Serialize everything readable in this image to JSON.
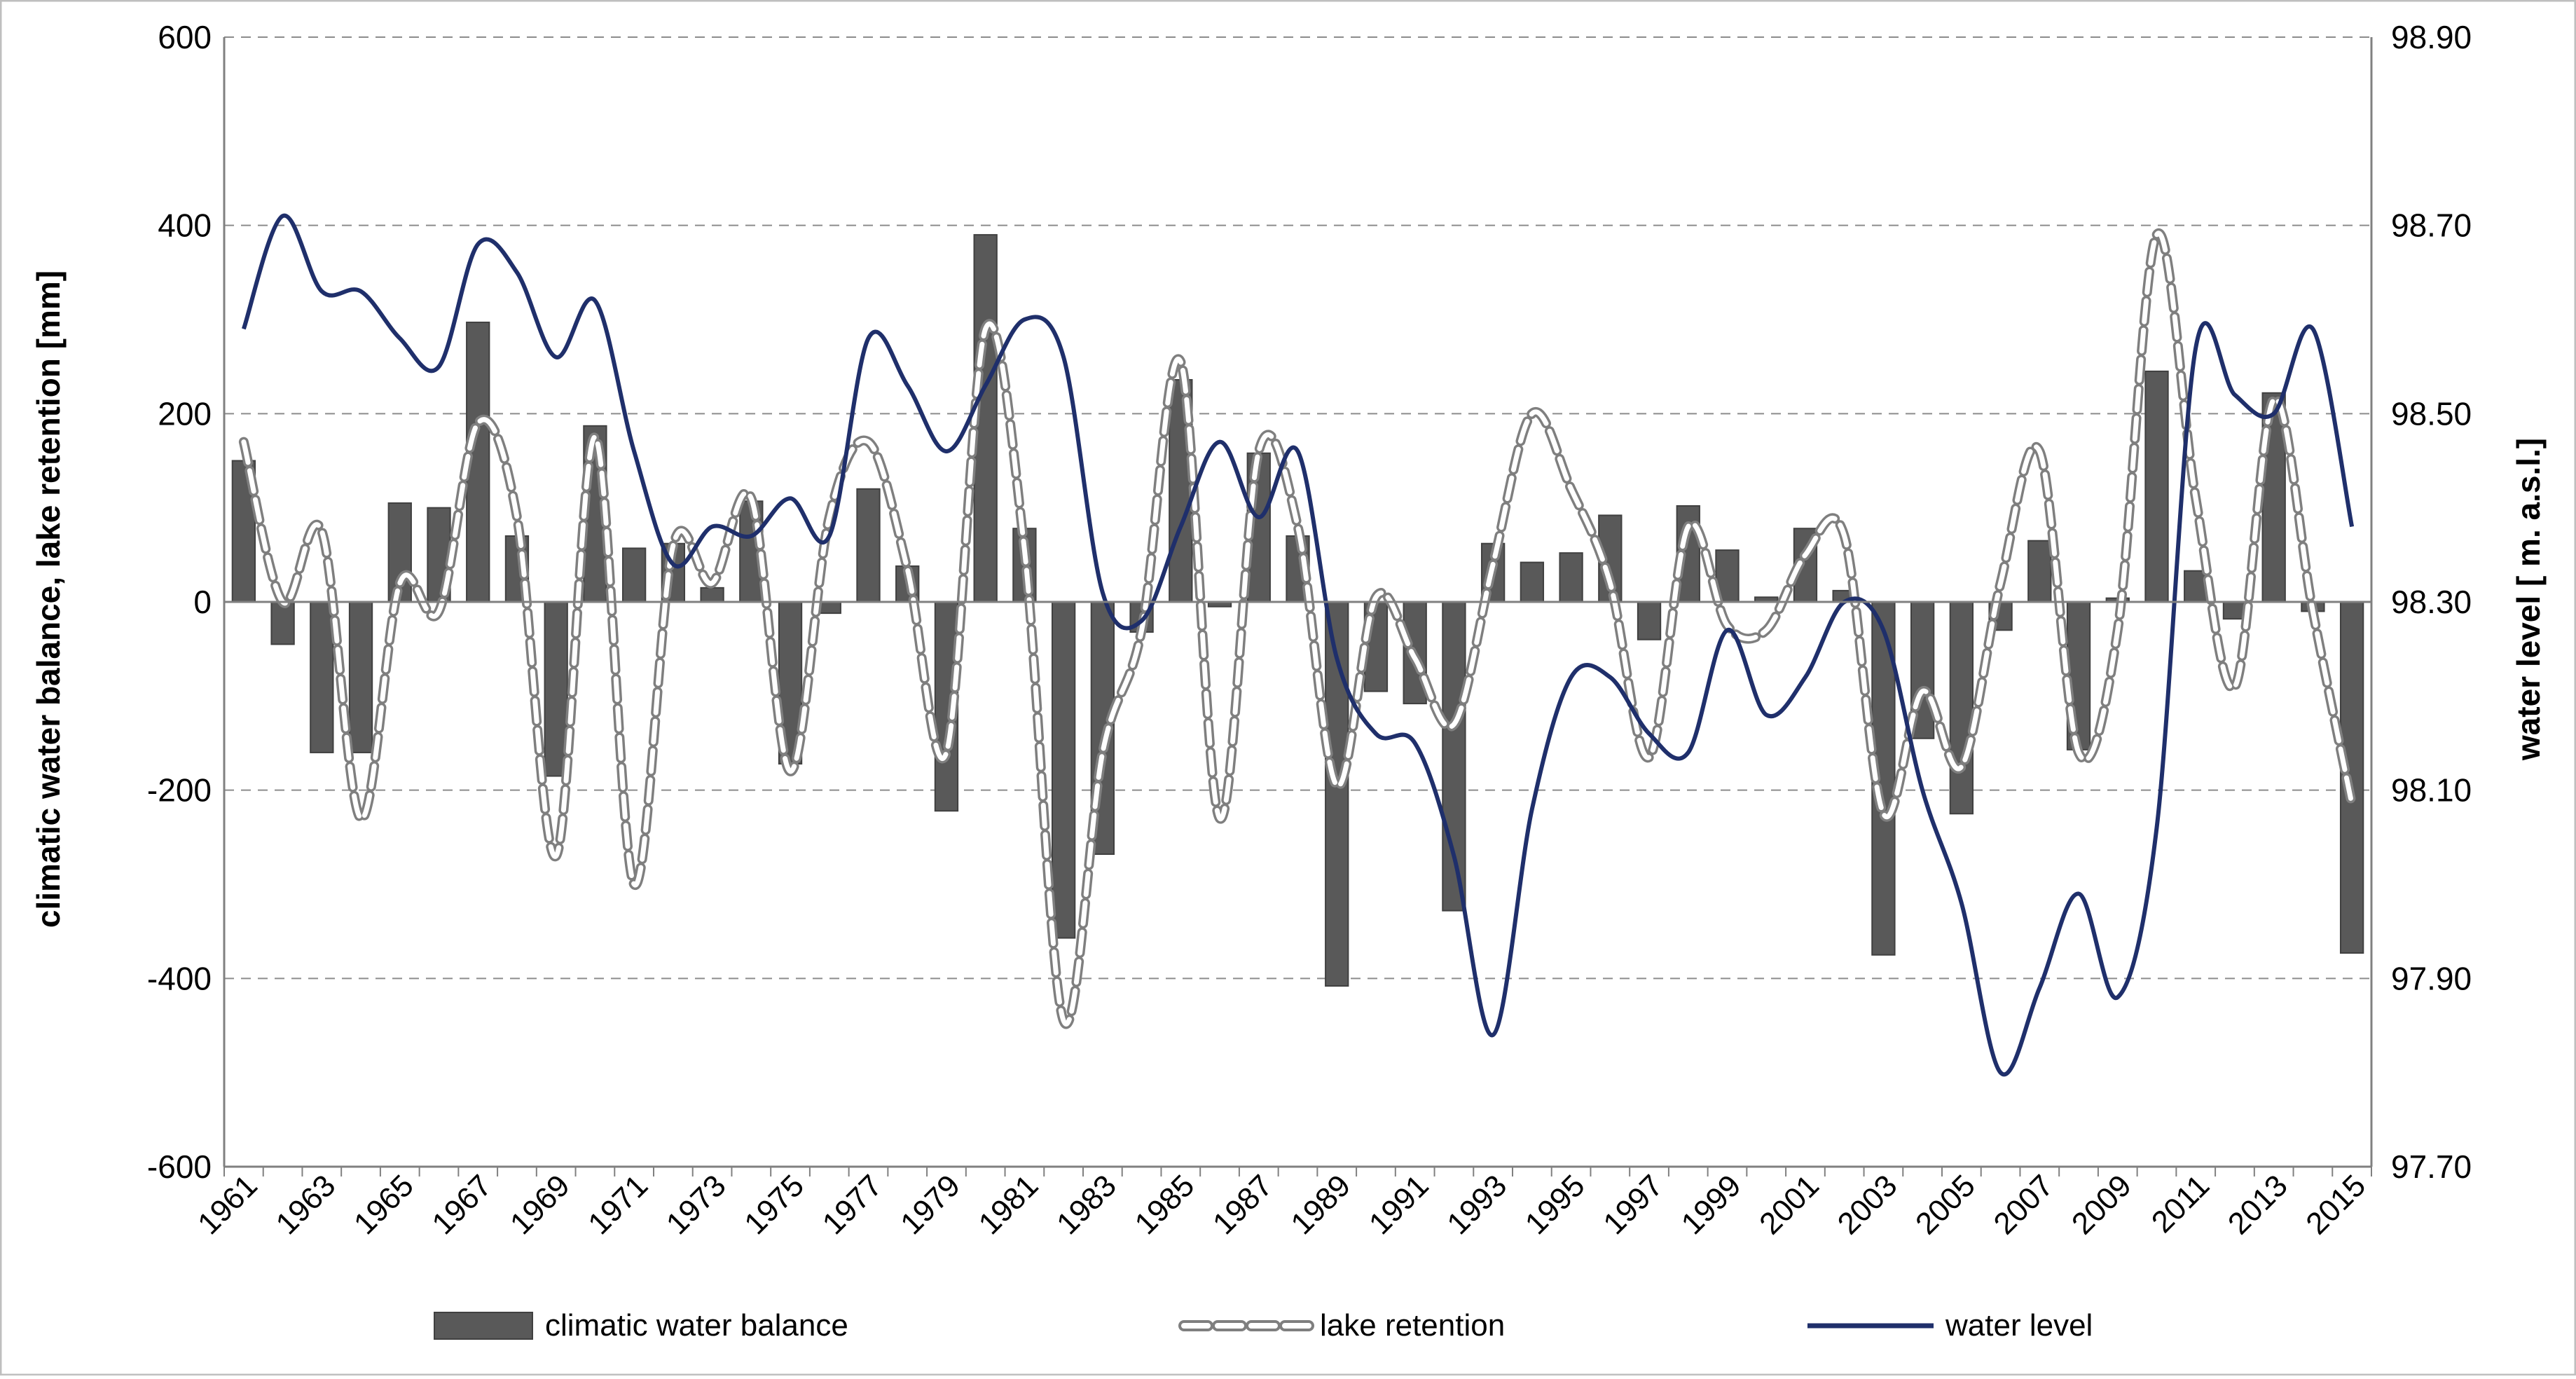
{
  "chart_data": {
    "type": "bar+line",
    "title": "",
    "xlabel": "",
    "ylabel_left": "climatic water balance, lake retention [mm]",
    "ylabel_right": "water level [ m. a.s.l.]",
    "ylim_left": [
      -600,
      600
    ],
    "ylim_right": [
      97.7,
      98.9
    ],
    "yticks_left": [
      "600",
      "400",
      "200",
      "0",
      "-200",
      "-400",
      "-600"
    ],
    "yticks_right": [
      "98.90",
      "98.70",
      "98.50",
      "98.30",
      "98.10",
      "97.90",
      "97.70"
    ],
    "grid": "horizontal dashed",
    "legend_position": "bottom",
    "x": [
      1961,
      1962,
      1963,
      1964,
      1965,
      1966,
      1967,
      1968,
      1969,
      1970,
      1971,
      1972,
      1973,
      1974,
      1975,
      1976,
      1977,
      1978,
      1979,
      1980,
      1981,
      1982,
      1983,
      1984,
      1985,
      1986,
      1987,
      1988,
      1989,
      1990,
      1991,
      1992,
      1993,
      1994,
      1995,
      1996,
      1997,
      1998,
      1999,
      2000,
      2001,
      2002,
      2003,
      2004,
      2005,
      2006,
      2007,
      2008,
      2009,
      2010,
      2011,
      2012,
      2013,
      2014,
      2015
    ],
    "xtick_labels": [
      "1961",
      "1963",
      "1965",
      "1967",
      "1969",
      "1971",
      "1973",
      "1975",
      "1977",
      "1979",
      "1981",
      "1983",
      "1985",
      "1987",
      "1989",
      "1991",
      "1993",
      "1995",
      "1997",
      "1999",
      "2001",
      "2003",
      "2005",
      "2007",
      "2009",
      "2011",
      "2013",
      "2015"
    ],
    "series": [
      {
        "name": "climatic water balance",
        "kind": "bar",
        "axis": "left",
        "color": "#595959",
        "values": [
          150,
          -45,
          -160,
          -160,
          105,
          100,
          297,
          70,
          -185,
          187,
          57,
          62,
          15,
          107,
          -172,
          -12,
          120,
          38,
          -222,
          390,
          78,
          -357,
          -268,
          -32,
          236,
          -5,
          158,
          70,
          -408,
          -95,
          -108,
          -328,
          62,
          42,
          52,
          92,
          -40,
          102,
          55,
          5,
          78,
          12,
          -375,
          -145,
          -225,
          -30,
          65,
          -157,
          4,
          245,
          33,
          -18,
          222,
          -10,
          -373
        ]
      },
      {
        "name": "lake retention",
        "kind": "line-dashed",
        "axis": "left",
        "color": "#7f7f7f",
        "values": [
          170,
          0,
          75,
          -230,
          20,
          -10,
          190,
          90,
          -270,
          175,
          -300,
          60,
          20,
          110,
          -180,
          90,
          170,
          35,
          -160,
          290,
          55,
          -445,
          -160,
          -30,
          255,
          -230,
          160,
          80,
          -195,
          5,
          -60,
          -130,
          40,
          200,
          120,
          20,
          -165,
          80,
          -25,
          -30,
          50,
          70,
          -225,
          -95,
          -175,
          20,
          160,
          -160,
          -30,
          390,
          110,
          -90,
          215,
          -10,
          -215
        ]
      },
      {
        "name": "water level",
        "kind": "line",
        "axis": "right",
        "color": "#1f2f6b",
        "values": [
          98.59,
          98.71,
          98.63,
          98.63,
          98.58,
          98.55,
          98.68,
          98.65,
          98.56,
          98.62,
          98.46,
          98.34,
          98.38,
          98.37,
          98.41,
          98.37,
          98.58,
          98.53,
          98.46,
          98.53,
          98.6,
          98.56,
          98.31,
          98.28,
          98.38,
          98.47,
          98.39,
          98.46,
          98.24,
          98.16,
          98.15,
          98.03,
          97.84,
          98.08,
          98.22,
          98.22,
          98.16,
          98.14,
          98.27,
          98.18,
          98.22,
          98.3,
          98.27,
          98.1,
          97.98,
          97.8,
          97.89,
          97.99,
          97.88,
          98.06,
          98.57,
          98.52,
          98.5,
          98.59,
          98.38
        ]
      }
    ]
  }
}
